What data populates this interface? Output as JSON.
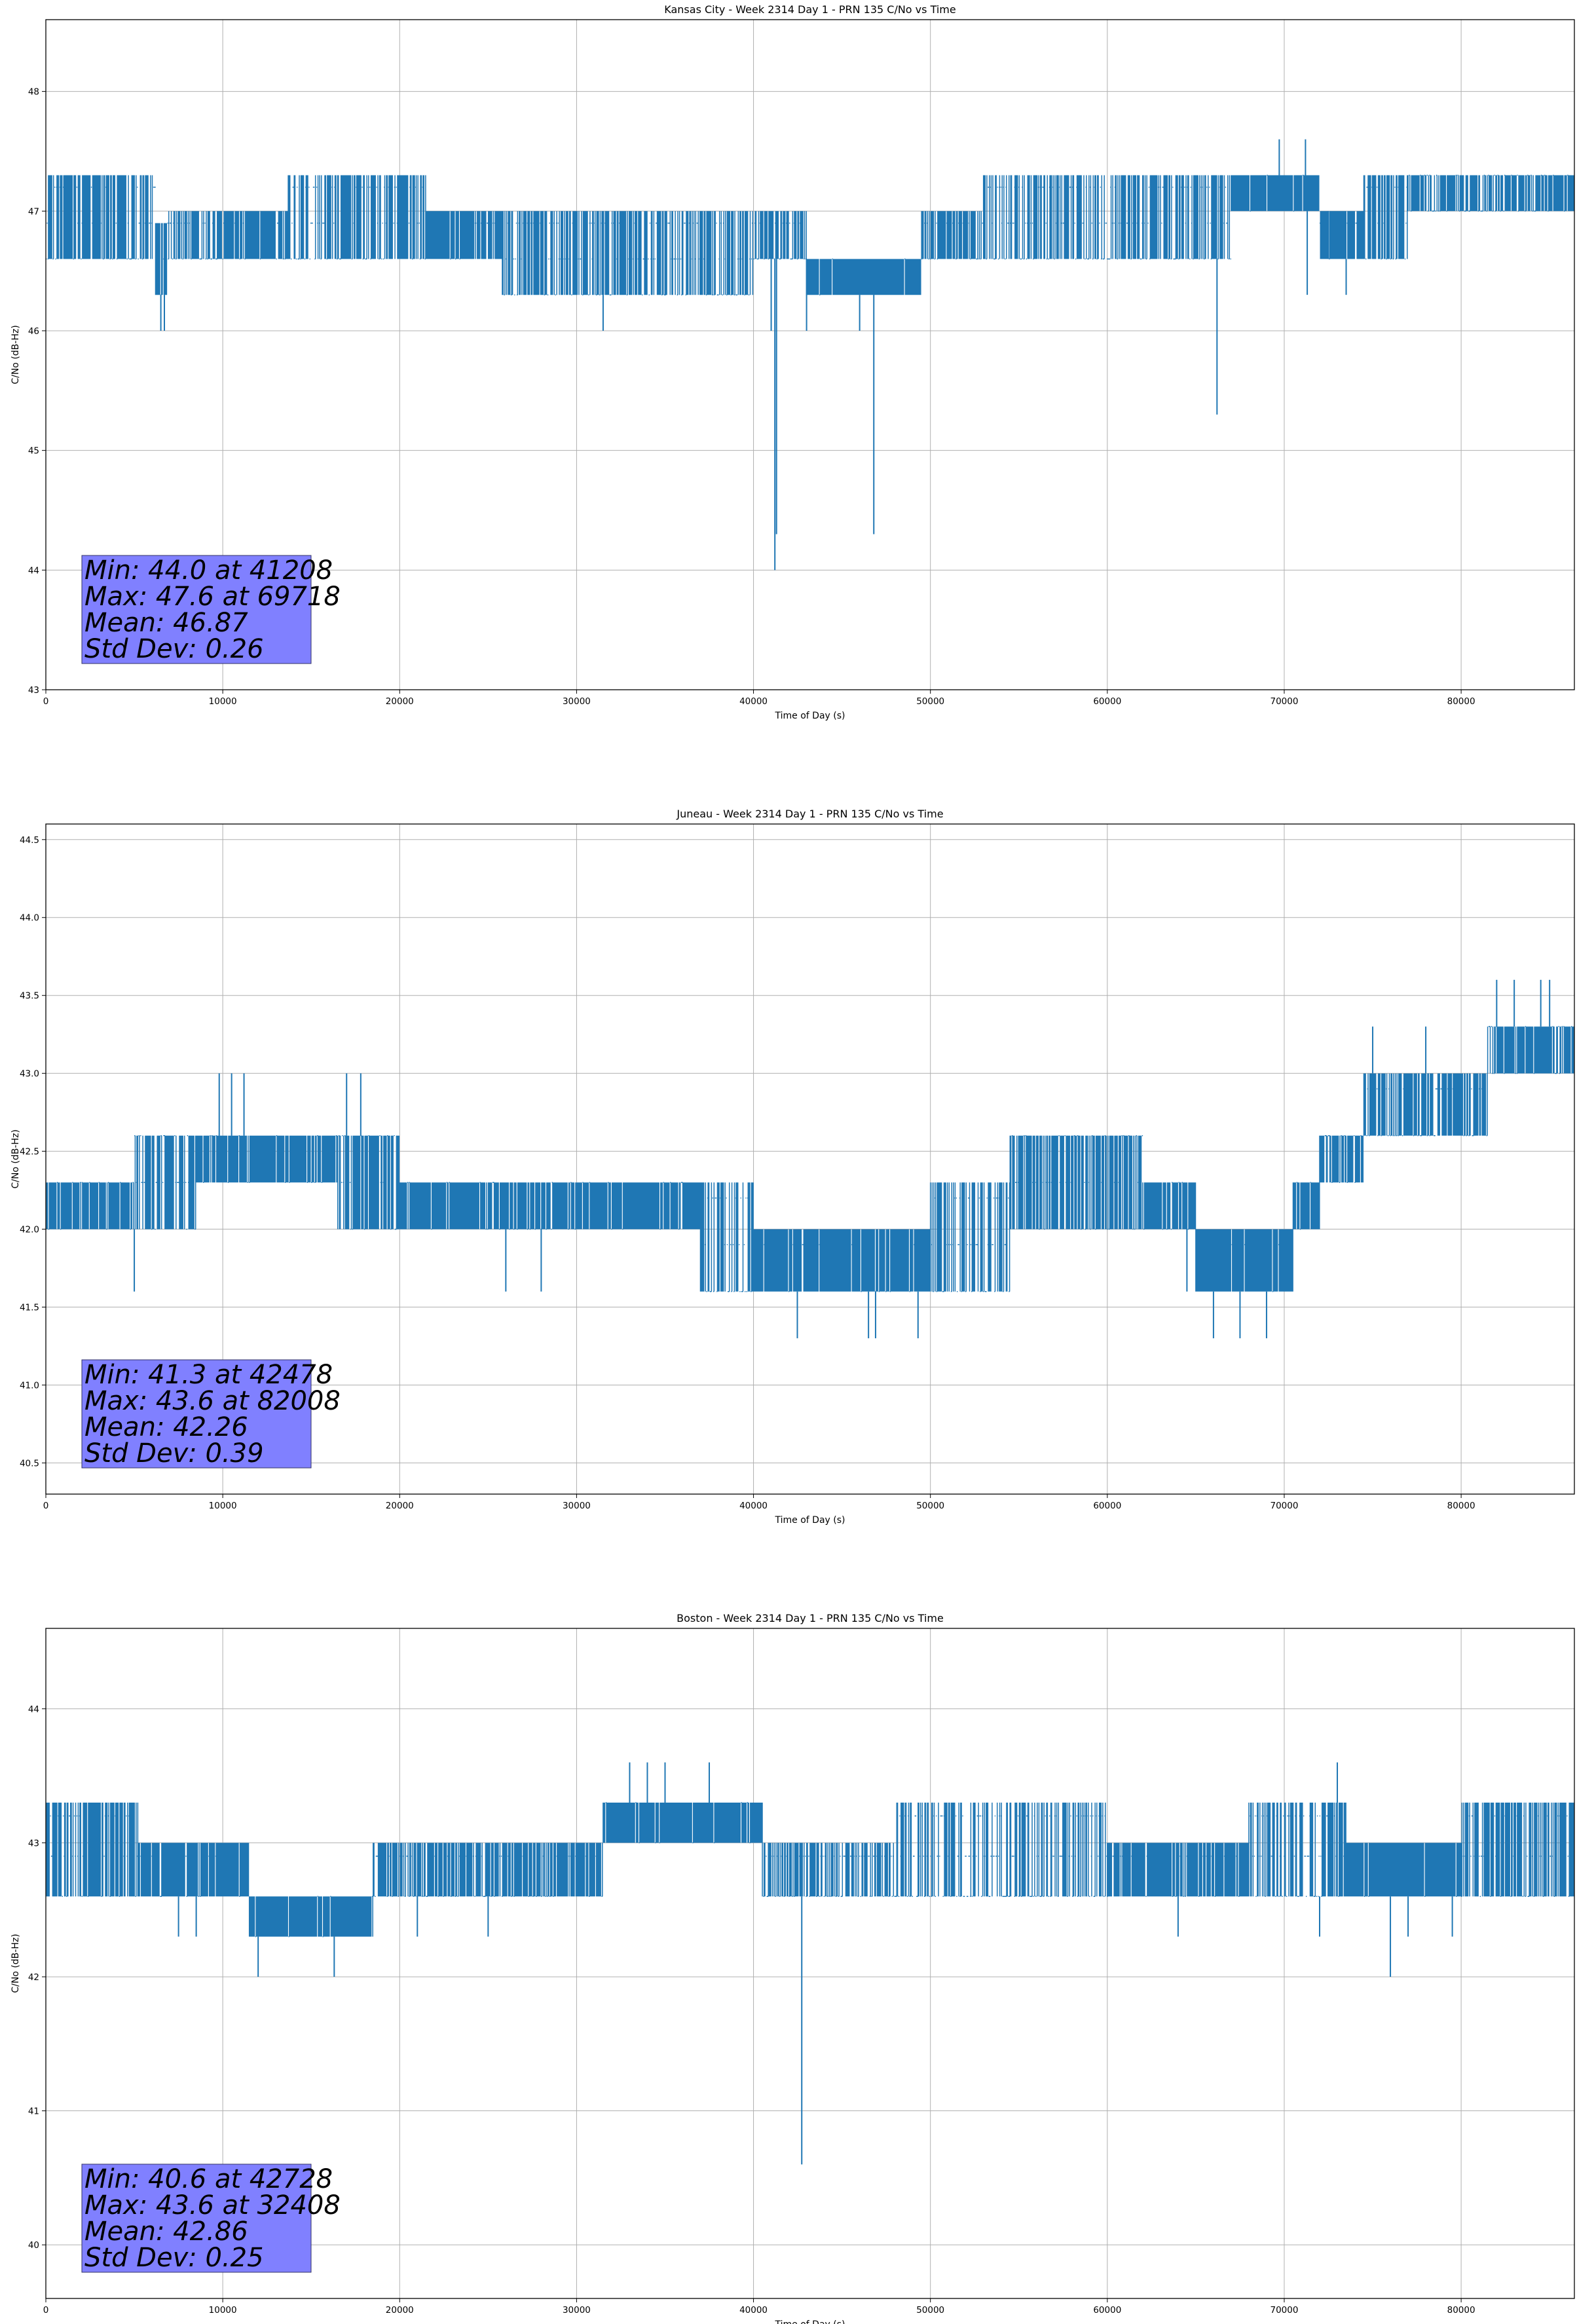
{
  "chart_data": [
    {
      "type": "line",
      "title": "Kansas City - Week 2314 Day 1 - PRN 135 C/No vs Time",
      "xlabel": "Time of Day (s)",
      "ylabel": "C/No (dB-Hz)",
      "xlim": [
        0,
        86400
      ],
      "ylim": [
        43,
        48.6
      ],
      "xticks": [
        0,
        10000,
        20000,
        30000,
        40000,
        50000,
        60000,
        70000,
        80000
      ],
      "yticks": [
        43,
        44,
        45,
        46,
        47,
        48
      ],
      "ytick_labels": [
        "43",
        "44",
        "45",
        "46",
        "47",
        "48"
      ],
      "grid": true,
      "series_color": "#1f77b4",
      "quantization": 0.3,
      "segments": [
        {
          "x0": 0,
          "x1": 6200,
          "lo": 46.6,
          "hi": 47.3,
          "d": 0.7
        },
        {
          "x0": 6200,
          "x1": 6900,
          "lo": 46.3,
          "hi": 46.9,
          "d": 0.9
        },
        {
          "x0": 6900,
          "x1": 9500,
          "lo": 46.6,
          "hi": 47.0,
          "d": 0.6
        },
        {
          "x0": 9500,
          "x1": 13700,
          "lo": 46.6,
          "hi": 47.0,
          "d": 0.85
        },
        {
          "x0": 13700,
          "x1": 16800,
          "lo": 46.6,
          "hi": 47.3,
          "d": 0.5
        },
        {
          "x0": 16800,
          "x1": 21500,
          "lo": 46.6,
          "hi": 47.3,
          "d": 0.75
        },
        {
          "x0": 21500,
          "x1": 25800,
          "lo": 46.6,
          "hi": 47.0,
          "d": 0.9
        },
        {
          "x0": 25800,
          "x1": 35000,
          "lo": 46.3,
          "hi": 47.0,
          "d": 0.55
        },
        {
          "x0": 35000,
          "x1": 40000,
          "lo": 46.3,
          "hi": 47.0,
          "d": 0.45
        },
        {
          "x0": 40000,
          "x1": 43000,
          "lo": 46.6,
          "hi": 47.0,
          "d": 0.6
        },
        {
          "x0": 43000,
          "x1": 49500,
          "lo": 46.3,
          "hi": 46.6,
          "d": 0.95
        },
        {
          "x0": 49500,
          "x1": 53000,
          "lo": 46.6,
          "hi": 47.0,
          "d": 0.7
        },
        {
          "x0": 53000,
          "x1": 58000,
          "lo": 46.6,
          "hi": 47.3,
          "d": 0.5
        },
        {
          "x0": 58000,
          "x1": 67000,
          "lo": 46.6,
          "hi": 47.3,
          "d": 0.55
        },
        {
          "x0": 67000,
          "x1": 72000,
          "lo": 47.0,
          "hi": 47.3,
          "d": 0.95
        },
        {
          "x0": 72000,
          "x1": 74500,
          "lo": 46.6,
          "hi": 47.0,
          "d": 0.85
        },
        {
          "x0": 74500,
          "x1": 77000,
          "lo": 46.6,
          "hi": 47.3,
          "d": 0.6
        },
        {
          "x0": 77000,
          "x1": 86400,
          "lo": 47.0,
          "hi": 47.3,
          "d": 0.75
        }
      ],
      "spikes": [
        {
          "x": 6500,
          "y": 46.0
        },
        {
          "x": 6700,
          "y": 46.0
        },
        {
          "x": 31500,
          "y": 46.0
        },
        {
          "x": 41000,
          "y": 46.0
        },
        {
          "x": 41208,
          "y": 44.0
        },
        {
          "x": 41300,
          "y": 44.3
        },
        {
          "x": 43000,
          "y": 46.0
        },
        {
          "x": 46000,
          "y": 46.0
        },
        {
          "x": 46800,
          "y": 44.3
        },
        {
          "x": 66200,
          "y": 45.3
        },
        {
          "x": 69718,
          "y": 47.6
        },
        {
          "x": 71200,
          "y": 47.6
        },
        {
          "x": 71300,
          "y": 46.3
        },
        {
          "x": 73500,
          "y": 46.3
        },
        {
          "x": 72500,
          "y": 46.6
        }
      ],
      "stats": {
        "min": "Min: 44.0 at 41208",
        "max": "Max: 47.6 at 69718",
        "mean": "Mean: 46.87",
        "std": "Std Dev: 0.26"
      },
      "stats_box_color": "#8080ff"
    },
    {
      "type": "line",
      "title": "Juneau - Week 2314 Day 1 - PRN 135 C/No vs Time",
      "xlabel": "Time of Day (s)",
      "ylabel": "C/No (dB-Hz)",
      "xlim": [
        0,
        86400
      ],
      "ylim": [
        40.3,
        44.6
      ],
      "xticks": [
        0,
        10000,
        20000,
        30000,
        40000,
        50000,
        60000,
        70000,
        80000
      ],
      "yticks": [
        40.5,
        41.0,
        41.5,
        42.0,
        42.5,
        43.0,
        43.5,
        44.0,
        44.5
      ],
      "ytick_labels": [
        "40.5",
        "41.0",
        "41.5",
        "42.0",
        "42.5",
        "43.0",
        "43.5",
        "44.0",
        "44.5"
      ],
      "grid": true,
      "series_color": "#1f77b4",
      "quantization": 0.3,
      "segments": [
        {
          "x0": 0,
          "x1": 5000,
          "lo": 42.0,
          "hi": 42.3,
          "d": 0.85
        },
        {
          "x0": 5000,
          "x1": 8500,
          "lo": 42.0,
          "hi": 42.6,
          "d": 0.6
        },
        {
          "x0": 8500,
          "x1": 16500,
          "lo": 42.3,
          "hi": 42.6,
          "d": 0.9
        },
        {
          "x0": 16500,
          "x1": 20000,
          "lo": 42.0,
          "hi": 42.6,
          "d": 0.6
        },
        {
          "x0": 20000,
          "x1": 26000,
          "lo": 42.0,
          "hi": 42.3,
          "d": 0.9
        },
        {
          "x0": 26000,
          "x1": 31000,
          "lo": 42.0,
          "hi": 42.3,
          "d": 0.8
        },
        {
          "x0": 31000,
          "x1": 37000,
          "lo": 42.0,
          "hi": 42.3,
          "d": 0.95
        },
        {
          "x0": 37000,
          "x1": 40000,
          "lo": 41.6,
          "hi": 42.3,
          "d": 0.55
        },
        {
          "x0": 40000,
          "x1": 50000,
          "lo": 41.6,
          "hi": 42.0,
          "d": 0.95
        },
        {
          "x0": 50000,
          "x1": 54500,
          "lo": 41.6,
          "hi": 42.3,
          "d": 0.55
        },
        {
          "x0": 54500,
          "x1": 62000,
          "lo": 42.0,
          "hi": 42.6,
          "d": 0.75
        },
        {
          "x0": 62000,
          "x1": 65000,
          "lo": 42.0,
          "hi": 42.3,
          "d": 0.9
        },
        {
          "x0": 65000,
          "x1": 70500,
          "lo": 41.6,
          "hi": 42.0,
          "d": 0.95
        },
        {
          "x0": 70500,
          "x1": 72000,
          "lo": 42.0,
          "hi": 42.3,
          "d": 0.9
        },
        {
          "x0": 72000,
          "x1": 74500,
          "lo": 42.3,
          "hi": 42.6,
          "d": 0.8
        },
        {
          "x0": 74500,
          "x1": 81500,
          "lo": 42.6,
          "hi": 43.0,
          "d": 0.7
        },
        {
          "x0": 81500,
          "x1": 86400,
          "lo": 43.0,
          "hi": 43.3,
          "d": 0.85
        }
      ],
      "spikes": [
        {
          "x": 5000,
          "y": 41.6
        },
        {
          "x": 9800,
          "y": 43.0
        },
        {
          "x": 10500,
          "y": 43.0
        },
        {
          "x": 11200,
          "y": 43.0
        },
        {
          "x": 17000,
          "y": 43.0
        },
        {
          "x": 17800,
          "y": 43.0
        },
        {
          "x": 26000,
          "y": 41.6
        },
        {
          "x": 28000,
          "y": 41.6
        },
        {
          "x": 42478,
          "y": 41.3
        },
        {
          "x": 46500,
          "y": 41.3
        },
        {
          "x": 46900,
          "y": 41.3
        },
        {
          "x": 49300,
          "y": 41.3
        },
        {
          "x": 64500,
          "y": 41.6
        },
        {
          "x": 66000,
          "y": 41.3
        },
        {
          "x": 67500,
          "y": 41.3
        },
        {
          "x": 69000,
          "y": 41.3
        },
        {
          "x": 75000,
          "y": 43.3
        },
        {
          "x": 78000,
          "y": 43.3
        },
        {
          "x": 82008,
          "y": 43.6
        },
        {
          "x": 83000,
          "y": 43.6
        },
        {
          "x": 84500,
          "y": 43.6
        },
        {
          "x": 85000,
          "y": 43.6
        }
      ],
      "stats": {
        "min": "Min: 41.3 at 42478",
        "max": "Max: 43.6 at 82008",
        "mean": "Mean: 42.26",
        "std": "Std Dev: 0.39"
      },
      "stats_box_color": "#8080ff"
    },
    {
      "type": "line",
      "title": "Boston - Week 2314 Day 1 - PRN 135 C/No vs Time",
      "xlabel": "Time of Day (s)",
      "ylabel": "C/No (dB-Hz)",
      "xlim": [
        0,
        86400
      ],
      "ylim": [
        39.6,
        44.6
      ],
      "xticks": [
        0,
        10000,
        20000,
        30000,
        40000,
        50000,
        60000,
        70000,
        80000
      ],
      "yticks": [
        40,
        41,
        42,
        43,
        44
      ],
      "ytick_labels": [
        "40",
        "41",
        "42",
        "43",
        "44"
      ],
      "grid": true,
      "series_color": "#1f77b4",
      "quantization": 0.3,
      "segments": [
        {
          "x0": 0,
          "x1": 5200,
          "lo": 42.6,
          "hi": 43.3,
          "d": 0.65
        },
        {
          "x0": 5200,
          "x1": 11500,
          "lo": 42.6,
          "hi": 43.0,
          "d": 0.9
        },
        {
          "x0": 11500,
          "x1": 18500,
          "lo": 42.3,
          "hi": 42.6,
          "d": 0.95
        },
        {
          "x0": 18500,
          "x1": 26500,
          "lo": 42.6,
          "hi": 43.0,
          "d": 0.7
        },
        {
          "x0": 26500,
          "x1": 31500,
          "lo": 42.6,
          "hi": 43.0,
          "d": 0.85
        },
        {
          "x0": 31500,
          "x1": 40500,
          "lo": 43.0,
          "hi": 43.3,
          "d": 0.95
        },
        {
          "x0": 40500,
          "x1": 48000,
          "lo": 42.6,
          "hi": 43.0,
          "d": 0.6
        },
        {
          "x0": 48000,
          "x1": 60000,
          "lo": 42.6,
          "hi": 43.3,
          "d": 0.45
        },
        {
          "x0": 60000,
          "x1": 68000,
          "lo": 42.6,
          "hi": 43.0,
          "d": 0.85
        },
        {
          "x0": 68000,
          "x1": 73500,
          "lo": 42.6,
          "hi": 43.3,
          "d": 0.6
        },
        {
          "x0": 73500,
          "x1": 80000,
          "lo": 42.6,
          "hi": 43.0,
          "d": 0.95
        },
        {
          "x0": 80000,
          "x1": 86400,
          "lo": 42.6,
          "hi": 43.3,
          "d": 0.7
        }
      ],
      "spikes": [
        {
          "x": 7500,
          "y": 42.3
        },
        {
          "x": 8500,
          "y": 42.3
        },
        {
          "x": 12000,
          "y": 42.0
        },
        {
          "x": 16300,
          "y": 42.0
        },
        {
          "x": 21000,
          "y": 42.3
        },
        {
          "x": 25000,
          "y": 42.3
        },
        {
          "x": 33000,
          "y": 43.6
        },
        {
          "x": 34000,
          "y": 43.6
        },
        {
          "x": 35000,
          "y": 43.6
        },
        {
          "x": 37500,
          "y": 43.6
        },
        {
          "x": 42728,
          "y": 40.6
        },
        {
          "x": 64000,
          "y": 42.3
        },
        {
          "x": 72000,
          "y": 42.3
        },
        {
          "x": 73000,
          "y": 43.6
        },
        {
          "x": 76000,
          "y": 42.0
        },
        {
          "x": 77000,
          "y": 42.3
        },
        {
          "x": 79500,
          "y": 42.3
        }
      ],
      "stats": {
        "min": "Min: 40.6 at 42728",
        "max": "Max: 43.6 at 32408",
        "mean": "Mean: 42.86",
        "std": "Std Dev: 0.25"
      },
      "stats_box_color": "#8080ff"
    }
  ]
}
